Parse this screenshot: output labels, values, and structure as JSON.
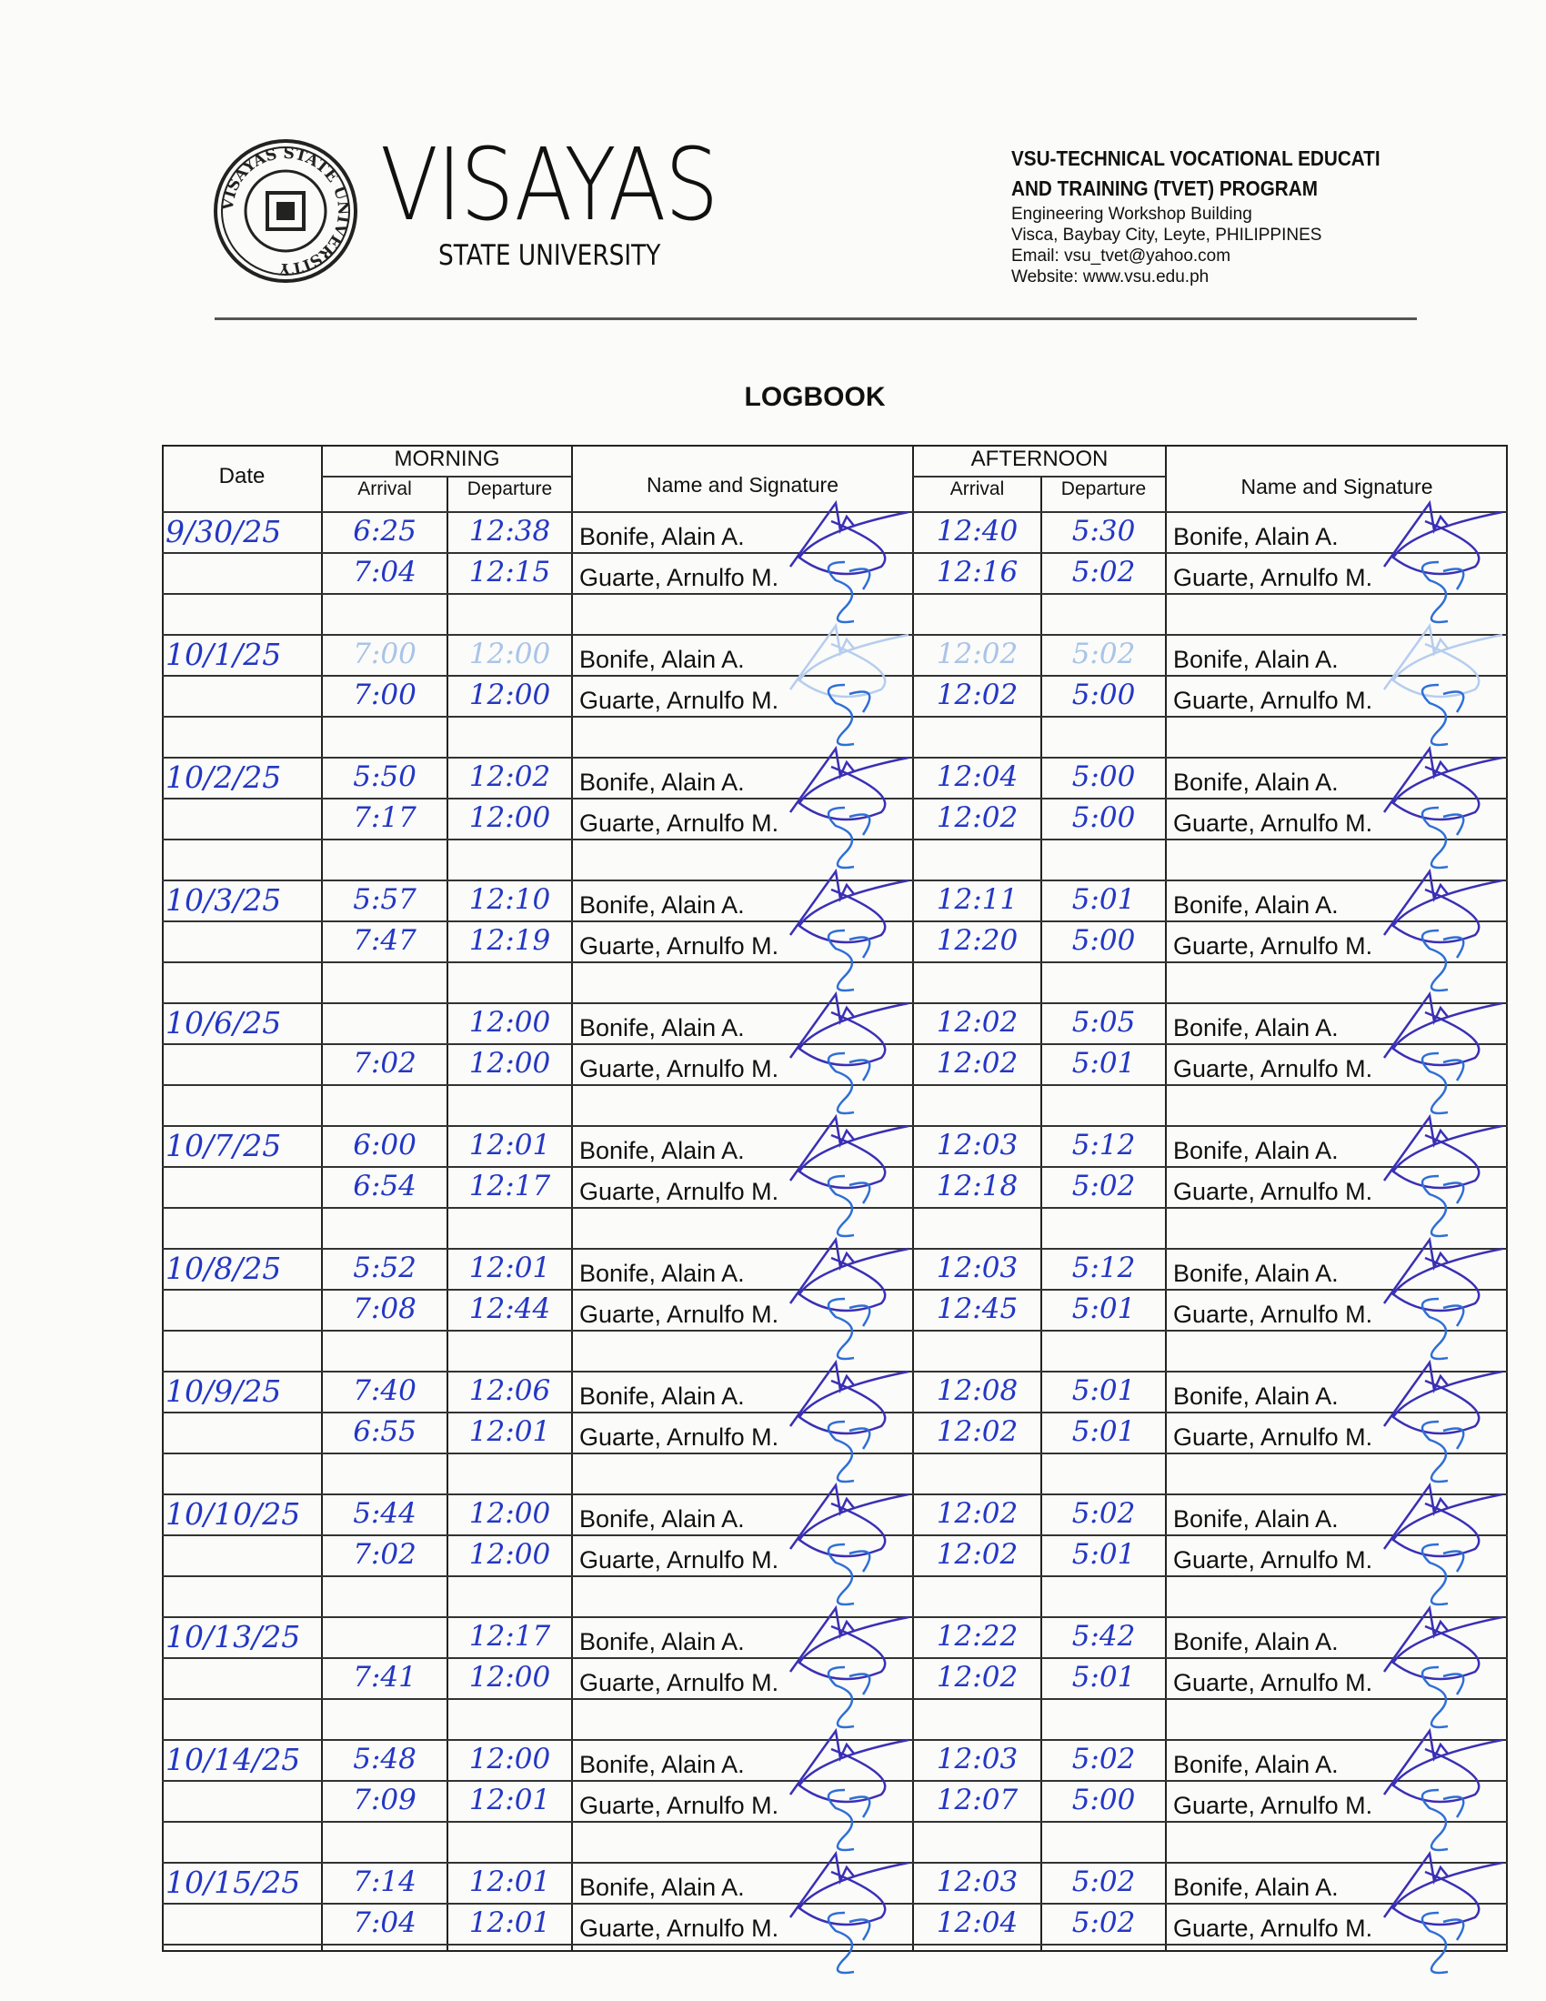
{
  "header": {
    "logo_text": "VISAYAS STATE UNIVERSITY",
    "brand": "VISAYAS",
    "brand_sub": "STATE UNIVERSITY",
    "org_line1": "VSU-TECHNICAL VOCATIONAL EDUCATI",
    "org_line2": "AND TRAINING (TVET) PROGRAM",
    "address1": "Engineering Workshop Building",
    "address2": "Visca, Baybay City, Leyte, PHILIPPINES",
    "email": "Email: vsu_tvet@yahoo.com",
    "website": "Website: www.vsu.edu.ph"
  },
  "title": "LOGBOOK",
  "columns": {
    "date": "Date",
    "morning": "MORNING",
    "afternoon": "AFTERNOON",
    "arrival": "Arrival",
    "departure": "Departure",
    "name_sig": "Name and Signature"
  },
  "ink_color": "#2337c4",
  "entries": [
    {
      "date": "9/30/25",
      "rows": [
        [
          "6:25",
          "12:38",
          "Bonife, Alain A.",
          "12:40",
          "5:30",
          "Bonife, Alain A."
        ],
        [
          "7:04",
          "12:15",
          "Guarte, Arnulfo M.",
          "12:16",
          "5:02",
          "Guarte, Arnulfo M."
        ]
      ]
    },
    {
      "date": "10/1/25",
      "faded": true,
      "rows": [
        [
          "7:00",
          "12:00",
          "Bonife, Alain A.",
          "12:02",
          "5:02",
          "Bonife, Alain A."
        ],
        [
          "7:00",
          "12:00",
          "Guarte, Arnulfo M.",
          "12:02",
          "5:00",
          "Guarte, Arnulfo M."
        ]
      ]
    },
    {
      "date": "10/2/25",
      "rows": [
        [
          "5:50",
          "12:02",
          "Bonife, Alain A.",
          "12:04",
          "5:00",
          "Bonife, Alain A."
        ],
        [
          "7:17",
          "12:00",
          "Guarte, Arnulfo M.",
          "12:02",
          "5:00",
          "Guarte, Arnulfo M."
        ]
      ]
    },
    {
      "date": "10/3/25",
      "rows": [
        [
          "5:57",
          "12:10",
          "Bonife, Alain A.",
          "12:11",
          "5:01",
          "Bonife, Alain A."
        ],
        [
          "7:47",
          "12:19",
          "Guarte, Arnulfo M.",
          "12:20",
          "5:00",
          "Guarte, Arnulfo M."
        ]
      ]
    },
    {
      "date": "10/6/25",
      "rows": [
        [
          "",
          "12:00",
          "Bonife, Alain A.",
          "12:02",
          "5:05",
          "Bonife, Alain A."
        ],
        [
          "7:02",
          "12:00",
          "Guarte, Arnulfo M.",
          "12:02",
          "5:01",
          "Guarte, Arnulfo M."
        ]
      ]
    },
    {
      "date": "10/7/25",
      "rows": [
        [
          "6:00",
          "12:01",
          "Bonife, Alain A.",
          "12:03",
          "5:12",
          "Bonife, Alain A."
        ],
        [
          "6:54",
          "12:17",
          "Guarte, Arnulfo M.",
          "12:18",
          "5:02",
          "Guarte, Arnulfo M."
        ]
      ]
    },
    {
      "date": "10/8/25",
      "rows": [
        [
          "5:52",
          "12:01",
          "Bonife, Alain A.",
          "12:03",
          "5:12",
          "Bonife, Alain A."
        ],
        [
          "7:08",
          "12:44",
          "Guarte, Arnulfo M.",
          "12:45",
          "5:01",
          "Guarte, Arnulfo M."
        ]
      ]
    },
    {
      "date": "10/9/25",
      "rows": [
        [
          "7:40",
          "12:06",
          "Bonife, Alain A.",
          "12:08",
          "5:01",
          "Bonife, Alain A."
        ],
        [
          "6:55",
          "12:01",
          "Guarte, Arnulfo M.",
          "12:02",
          "5:01",
          "Guarte, Arnulfo M."
        ]
      ]
    },
    {
      "date": "10/10/25",
      "rows": [
        [
          "5:44",
          "12:00",
          "Bonife, Alain A.",
          "12:02",
          "5:02",
          "Bonife, Alain A."
        ],
        [
          "7:02",
          "12:00",
          "Guarte, Arnulfo M.",
          "12:02",
          "5:01",
          "Guarte, Arnulfo M."
        ]
      ]
    },
    {
      "date": "10/13/25",
      "rows": [
        [
          "",
          "12:17",
          "Bonife, Alain A.",
          "12:22",
          "5:42",
          "Bonife, Alain A."
        ],
        [
          "7:41",
          "12:00",
          "Guarte, Arnulfo M.",
          "12:02",
          "5:01",
          "Guarte, Arnulfo M."
        ]
      ]
    },
    {
      "date": "10/14/25",
      "rows": [
        [
          "5:48",
          "12:00",
          "Bonife, Alain A.",
          "12:03",
          "5:02",
          "Bonife, Alain A."
        ],
        [
          "7:09",
          "12:01",
          "Guarte, Arnulfo M.",
          "12:07",
          "5:00",
          "Guarte, Arnulfo M."
        ]
      ]
    },
    {
      "date": "10/15/25",
      "rows": [
        [
          "7:14",
          "12:01",
          "Bonife, Alain A.",
          "12:03",
          "5:02",
          "Bonife, Alain A."
        ],
        [
          "7:04",
          "12:01",
          "Guarte, Arnulfo M.",
          "12:04",
          "5:02",
          "Guarte, Arnulfo M."
        ]
      ]
    }
  ]
}
